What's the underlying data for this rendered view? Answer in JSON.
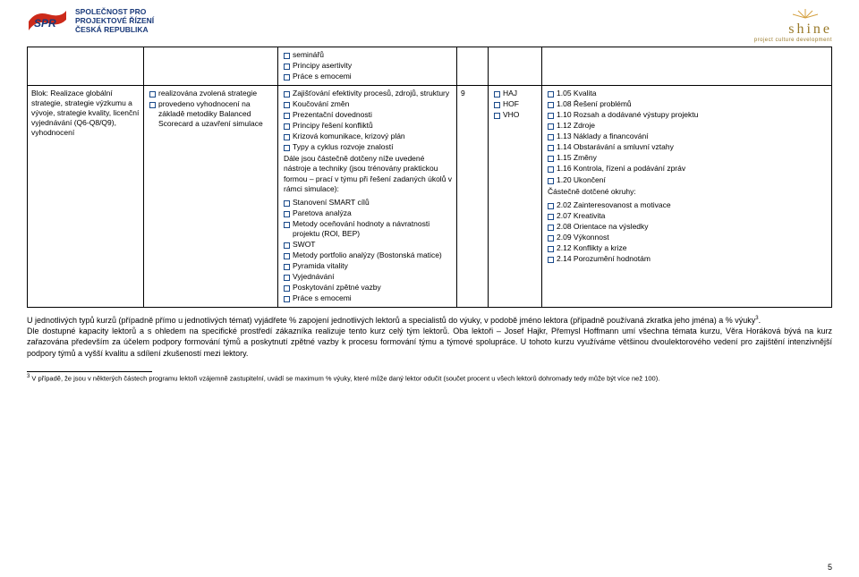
{
  "header": {
    "logo_left_lines": [
      "SPOLEČNOST PRO",
      "PROJEKTOVÉ ŘÍZENÍ",
      "ČESKÁ REPUBLIKA"
    ],
    "spr_abbrev": "SPR",
    "shine_word": "shine",
    "shine_tagline": "project culture development"
  },
  "row0": {
    "col3_items": [
      "seminářů",
      "Principy asertivity",
      "Práce s emocemi"
    ]
  },
  "row1": {
    "col1_text": "Blok: Realizace globální strategie, strategie výzkumu a vývoje, strategie kvality, licenční vyjednávání (Q6-Q8/Q9), vyhodnocení",
    "col2_items": [
      "realizována zvolená strategie",
      "provedeno vyhodnocení na základě metodiky Balanced Scorecard a uzavření simulace"
    ],
    "col3_items_a": [
      "Zajišťování efektivity procesů, zdrojů, struktury",
      "Koučování změn",
      "Prezentační dovednosti",
      "Principy řešení konfliktů",
      "Krizová komunikace, krizový plán",
      "Typy a cyklus rozvoje znalostí"
    ],
    "col3_para": "Dále jsou částečně dotčeny níže uvedené nástroje a techniky (jsou trénovány praktickou formou – prací v týmu při řešení zadaných úkolů v rámci simulace):",
    "col3_items_b": [
      "Stanovení SMART cílů",
      "Paretova analýza",
      "Metody oceňování hodnoty a návratnosti projektu (ROI, BEP)",
      "SWOT",
      "Metody portfolio analýzy (Bostonská matice)",
      "Pyramida vitality",
      "Vyjednávání",
      "Poskytování zpětné vazby",
      "Práce s emocemi"
    ],
    "col4_val": "9",
    "col5_items": [
      "HAJ",
      "HOF",
      "VHO"
    ],
    "col6_items_a": [
      "1.05 Kvalita",
      "1.08 Řešení problémů",
      "1.10 Rozsah a dodávané výstupy projektu",
      "1.12 Zdroje",
      "1.13 Náklady a financování",
      "1.14 Obstarávání a smluvní vztahy",
      "1.15 Změny",
      "1.16 Kontrola, řízení a podávání zpráv",
      "1.20 Ukončení"
    ],
    "col6_para": "Částečně dotčené okruhy:",
    "col6_items_b": [
      "2.02 Zainteresovanost a motivace",
      "2.07 Kreativita",
      "2.08 Orientace na výsledky",
      "2.09 Výkonnost",
      "2.12 Konflikty a krize",
      "2.14 Porozumění hodnotám"
    ]
  },
  "body_p1": "U jednotlivých typů kurzů (případně přímo u jednotlivých témat) vyjádřete % zapojení jednotlivých lektorů a specialistů do výuky, v podobě jméno lektora (případně používaná zkratka jeho jména) a % výuky",
  "body_p1_sup": "3",
  "body_p1_end": ".",
  "body_p2": "Dle dostupné kapacity lektorů a s ohledem na specifické prostředí zákazníka realizuje tento kurz celý tým lektorů. Oba lektoři – Josef Hajkr, Přemysl Hoffmann umí všechna témata kurzu, Věra Horáková bývá na kurz zařazována především za účelem podpory formování týmů a poskytnutí zpětné vazby k procesu formování týmu a týmové spolupráce. U tohoto kurzu využíváme většinou dvoulektorového vedení pro zajištění intenzivnější podpory týmů a vyšší kvalitu a sdílení zkušeností mezi lektory.",
  "footnote_marker": "3",
  "footnote_text": " V případě, že jsou v některých částech programu lektoři vzájemně zastupitelní, uvádí se maximum % výuky, které může daný lektor odučit (součet procent u všech lektorů dohromady tedy může být více než 100).",
  "page_number": "5",
  "colors": {
    "bullet_border": "#1a4a8a",
    "text": "#000000",
    "logo_blue": "#1a3a7a",
    "logo_red": "#cc2a1a",
    "shine_gold": "#9a7a2a",
    "background": "#ffffff"
  }
}
